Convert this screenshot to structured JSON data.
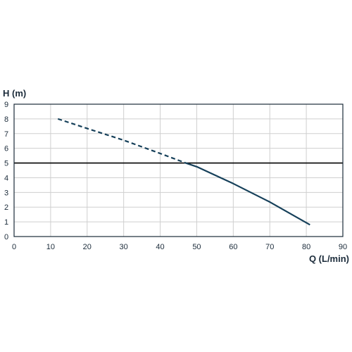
{
  "chart_data": {
    "type": "line",
    "title": "",
    "xlabel": "Q (L/min)",
    "ylabel": "H (m)",
    "xlim": [
      0,
      90
    ],
    "ylim": [
      0,
      9
    ],
    "x_ticks": [
      "0",
      "10",
      "20",
      "30",
      "40",
      "50",
      "60",
      "70",
      "80",
      "90"
    ],
    "y_ticks": [
      "0",
      "1",
      "2",
      "3",
      "4",
      "5",
      "6",
      "7",
      "8",
      "9"
    ],
    "grid": true,
    "legend": "none",
    "reference_line": {
      "y": 5,
      "color": "#000000"
    },
    "series": [
      {
        "style": "dashed",
        "color": "#16405a",
        "x": [
          12,
          20,
          30,
          40,
          47
        ],
        "y": [
          8.0,
          7.35,
          6.55,
          5.65,
          5.0
        ]
      },
      {
        "style": "solid",
        "color": "#16405a",
        "x": [
          47,
          50,
          60,
          70,
          81
        ],
        "y": [
          5.0,
          4.75,
          3.6,
          2.35,
          0.8
        ]
      }
    ]
  }
}
